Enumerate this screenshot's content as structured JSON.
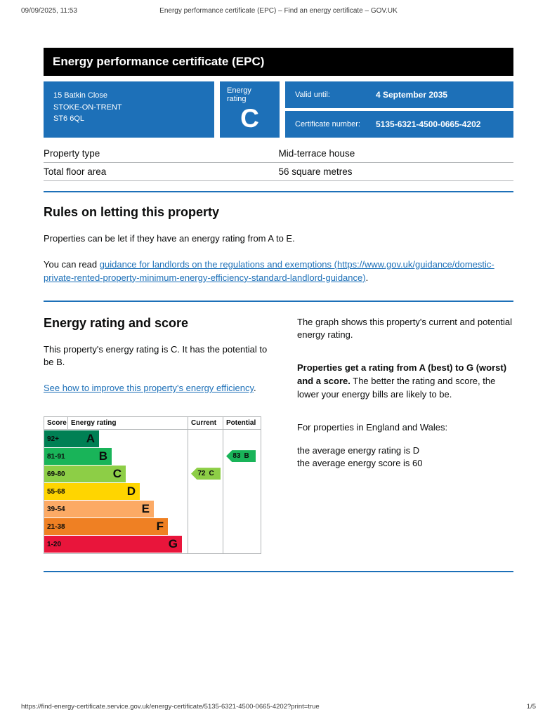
{
  "meta": {
    "datetime": "09/09/2025, 11:53",
    "doc_title": "Energy performance certificate (EPC) – Find an energy certificate – GOV.UK",
    "footer_url": "https://find-energy-certificate.service.gov.uk/energy-certificate/5135-6321-4500-0665-4202?print=true",
    "page_number": "1/5"
  },
  "banner": {
    "title": "Energy performance certificate (EPC)"
  },
  "summary": {
    "address_line1": "15 Batkin Close",
    "address_line2": "STOKE-ON-TRENT",
    "address_line3": "ST6 6QL",
    "energy_rating_label": "Energy rating",
    "energy_rating": "C",
    "valid_until_label": "Valid until:",
    "valid_until": "4 September 2035",
    "certificate_number_label": "Certificate number:",
    "certificate_number": "5135-6321-4500-0665-4202"
  },
  "property_table": {
    "rows": [
      {
        "label": "Property type",
        "value": "Mid-terrace house"
      },
      {
        "label": "Total floor area",
        "value": "56 square metres"
      }
    ]
  },
  "rules_section": {
    "heading": "Rules on letting this property",
    "para1": "Properties can be let if they have an energy rating from A to E.",
    "para2_prefix": "You can read ",
    "para2_link": "guidance for landlords on the regulations and exemptions (https://www.gov.uk/guidance/domestic-private-rented-property-minimum-energy-efficiency-standard-landlord-guidance)",
    "para2_suffix": "."
  },
  "rating_section": {
    "heading": "Energy rating and score",
    "para1": "This property's energy rating is C. It has the potential to be B.",
    "link": "See how to improve this property's energy efficiency",
    "link_suffix": ".",
    "right_para1": "The graph shows this property's current and potential energy rating.",
    "right_para2_bold": "Properties get a rating from A (best) to G (worst) and a score.",
    "right_para2_rest": " The better the rating and score, the lower your energy bills are likely to be.",
    "right_para3": "For properties in England and Wales:",
    "avg_rating_line": "the average energy rating is D",
    "avg_score_line": "the average energy score is 60"
  },
  "chart_data": {
    "type": "bar",
    "orientation": "horizontal",
    "headers": {
      "score": "Score",
      "rating": "Energy rating",
      "current": "Current",
      "potential": "Potential"
    },
    "bands": [
      {
        "score": "92+",
        "letter": "A",
        "color": "#008054"
      },
      {
        "score": "81-91",
        "letter": "B",
        "color": "#19b459"
      },
      {
        "score": "69-80",
        "letter": "C",
        "color": "#8dce46"
      },
      {
        "score": "55-68",
        "letter": "D",
        "color": "#ffd500"
      },
      {
        "score": "39-54",
        "letter": "E",
        "color": "#fcaa65"
      },
      {
        "score": "21-38",
        "letter": "F",
        "color": "#ef8023"
      },
      {
        "score": "1-20",
        "letter": "G",
        "color": "#e9153b"
      }
    ],
    "current": {
      "score": 72,
      "letter": "C",
      "band_index": 2,
      "color": "#8dce46"
    },
    "potential": {
      "score": 83,
      "letter": "B",
      "band_index": 1,
      "color": "#19b459"
    }
  },
  "colors": {
    "govuk_blue": "#1d70b8",
    "banner_bg": "#000000",
    "link": "#1d70b8",
    "border_grey": "#b1b4b6"
  }
}
